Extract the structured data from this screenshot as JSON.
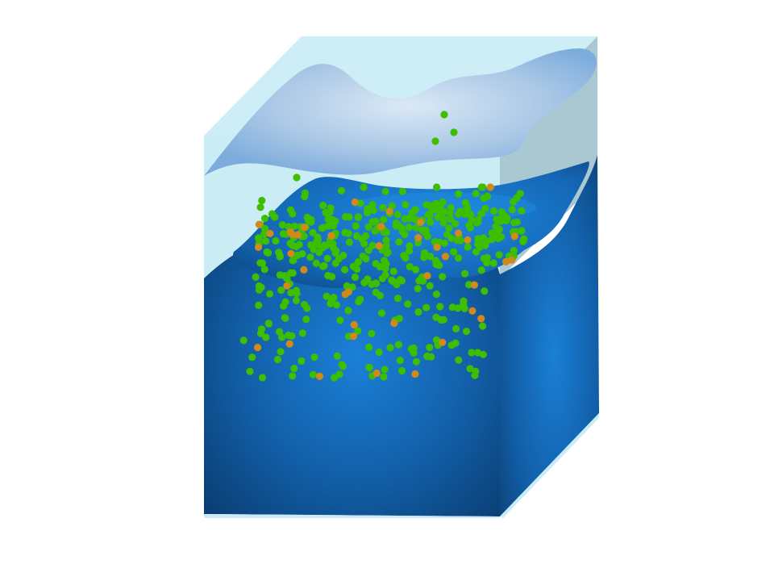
{
  "figure": {
    "subject": "ocean-water-block-with-particles",
    "colors": {
      "background": "#ffffff",
      "air_light": "#cdeef6",
      "air_side": "#abc9d3",
      "cloud_light": "#d8e8f4",
      "cloud_dark": "#7eaedc",
      "water_light": "#1a7fd6",
      "water_dark": "#0a3e73",
      "particle_green": "#3dbe00",
      "particle_orange": "#d08a1a"
    },
    "particles": {
      "green_count": 420,
      "orange_count": 40
    }
  }
}
